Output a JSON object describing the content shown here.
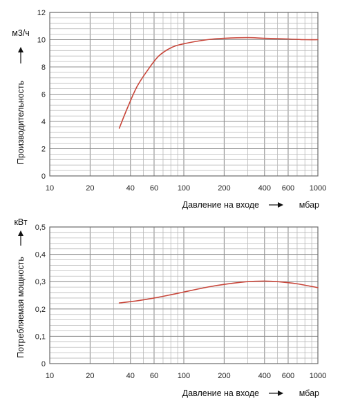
{
  "chart_data": [
    {
      "type": "line",
      "xscale": "log",
      "xlim": [
        10,
        1000
      ],
      "ylim": [
        0,
        12
      ],
      "x_ticks": [
        10,
        20,
        40,
        60,
        100,
        200,
        400,
        600,
        1000
      ],
      "x_tick_labels": [
        "10",
        "20",
        "40",
        "60",
        "100",
        "200",
        "400",
        "600",
        "1000"
      ],
      "y_ticks": [
        0,
        2,
        4,
        6,
        8,
        10,
        12
      ],
      "y_tick_labels": [
        "0",
        "2",
        "4",
        "6",
        "8",
        "10",
        "12"
      ],
      "xlabel": "Давление на входе",
      "xunit": "мбар",
      "ylabel": "Производительность",
      "yunit": "м3/ч",
      "grid": true,
      "series": [
        {
          "color": "#c8463a",
          "x": [
            33,
            38,
            45,
            55,
            65,
            80,
            100,
            150,
            200,
            300,
            400,
            600,
            800,
            1000
          ],
          "y": [
            3.5,
            5.0,
            6.6,
            7.9,
            8.8,
            9.4,
            9.7,
            10.0,
            10.1,
            10.15,
            10.1,
            10.05,
            10.0,
            10.0
          ]
        }
      ]
    },
    {
      "type": "line",
      "xscale": "log",
      "xlim": [
        10,
        1000
      ],
      "ylim": [
        0,
        0.5
      ],
      "x_ticks": [
        10,
        20,
        40,
        60,
        100,
        200,
        400,
        600,
        1000
      ],
      "x_tick_labels": [
        "10",
        "20",
        "40",
        "60",
        "100",
        "200",
        "400",
        "600",
        "1000"
      ],
      "y_ticks": [
        0,
        0.1,
        0.2,
        0.3,
        0.4,
        0.5
      ],
      "y_tick_labels": [
        "0",
        "0,1",
        "0,2",
        "0,3",
        "0,4",
        "0,5"
      ],
      "xlabel": "Давление на входе",
      "xunit": "мбар",
      "ylabel": "Потребляемая мощность",
      "yunit": "кВт",
      "grid": true,
      "series": [
        {
          "color": "#c8463a",
          "x": [
            33,
            45,
            60,
            80,
            100,
            150,
            200,
            300,
            400,
            500,
            700,
            1000
          ],
          "y": [
            0.222,
            0.23,
            0.24,
            0.252,
            0.262,
            0.28,
            0.29,
            0.3,
            0.302,
            0.3,
            0.292,
            0.278
          ]
        }
      ]
    }
  ]
}
